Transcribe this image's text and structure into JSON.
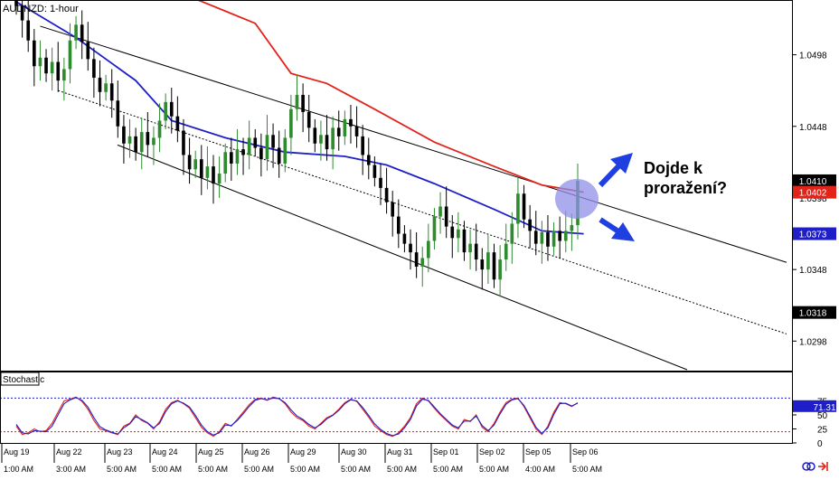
{
  "chart_data": [
    {
      "type": "candlestick",
      "title": "AUDNZD: 1-hour",
      "ylim": [
        1.0278,
        1.0535
      ],
      "y_ticks": [
        {
          "label": "1.0498",
          "value": 1.0498
        },
        {
          "label": "1.0448",
          "value": 1.0448
        },
        {
          "label": "1.0398",
          "value": 1.0398
        },
        {
          "label": "1.0348",
          "value": 1.0348
        },
        {
          "label": "1.0298",
          "value": 1.0298
        }
      ],
      "price_tags": [
        {
          "label": "1.0410",
          "value": 1.041,
          "bg": "#000000",
          "fg": "#ffffff"
        },
        {
          "label": "1.0402",
          "value": 1.0402,
          "bg": "#e2231a",
          "fg": "#ffffff"
        },
        {
          "label": "1.0373",
          "value": 1.0373,
          "bg": "#1f1fc8",
          "fg": "#ffffff"
        },
        {
          "label": "1.0318",
          "value": 1.0318,
          "bg": "#000000",
          "fg": "#ffffff"
        }
      ],
      "x_date_labels": [
        "Aug 19",
        "Aug 22",
        "Aug 23",
        "Aug 24",
        "Aug 25",
        "Aug 26",
        "Aug 29",
        "Aug 30",
        "Aug 31",
        "Sep 01",
        "Sep 02",
        "Sep 05",
        "Sep 06"
      ],
      "x_time_labels": [
        "1:00 AM",
        "3:00 AM",
        "5:00 AM",
        "5:00 AM",
        "5:00 AM",
        "5:00 AM",
        "5:00 AM",
        "5:00 AM",
        "5:00 AM",
        "5:00 AM",
        "5:00 AM",
        "4:00 AM",
        "5:00 AM"
      ],
      "colors": {
        "up": "#2e8b2e",
        "down": "#000000",
        "ma_long": "#e2231a",
        "ma_short": "#1f1fc8"
      },
      "annotation_text": [
        "Dojde k",
        "proražení?"
      ],
      "candle_closes": [
        1.0532,
        1.0522,
        1.0508,
        1.049,
        1.0496,
        1.0485,
        1.0493,
        1.048,
        1.0488,
        1.0508,
        1.0519,
        1.0507,
        1.0495,
        1.0482,
        1.0472,
        1.0478,
        1.0466,
        1.0448,
        1.0436,
        1.0441,
        1.043,
        1.0444,
        1.0435,
        1.044,
        1.0452,
        1.0465,
        1.0455,
        1.0445,
        1.0428,
        1.0418,
        1.0425,
        1.0412,
        1.042,
        1.0408,
        1.0415,
        1.043,
        1.0422,
        1.0432,
        1.0428,
        1.044,
        1.0433,
        1.0425,
        1.0442,
        1.0433,
        1.0422,
        1.044,
        1.046,
        1.047,
        1.0458,
        1.0447,
        1.0436,
        1.0442,
        1.0432,
        1.0447,
        1.0441,
        1.0453,
        1.0448,
        1.0441,
        1.0428,
        1.0421,
        1.0412,
        1.0405,
        1.0395,
        1.0385,
        1.0373,
        1.0366,
        1.036,
        1.035,
        1.0356,
        1.0368,
        1.0385,
        1.0392,
        1.0378,
        1.037,
        1.0376,
        1.036,
        1.0366,
        1.0355,
        1.0348,
        1.036,
        1.0341,
        1.0355,
        1.0366,
        1.038,
        1.0401,
        1.0383,
        1.0375,
        1.0366,
        1.0374,
        1.0364,
        1.0375,
        1.0368,
        1.0375,
        1.0379,
        1.041
      ],
      "ma_long_points": [
        [
          0,
          1.059
        ],
        [
          10,
          1.0572
        ],
        [
          20,
          1.0555
        ],
        [
          30,
          1.0537
        ],
        [
          40,
          1.052
        ],
        [
          46,
          1.0485
        ],
        [
          52,
          1.0478
        ],
        [
          60,
          1.046
        ],
        [
          70,
          1.0437
        ],
        [
          80,
          1.042
        ],
        [
          88,
          1.0407
        ],
        [
          95,
          1.0402
        ]
      ],
      "ma_short_points": [
        [
          0,
          1.0535
        ],
        [
          10,
          1.051
        ],
        [
          20,
          1.048
        ],
        [
          26,
          1.0452
        ],
        [
          35,
          1.044
        ],
        [
          45,
          1.043
        ],
        [
          55,
          1.0427
        ],
        [
          62,
          1.0421
        ],
        [
          70,
          1.0408
        ],
        [
          80,
          1.039
        ],
        [
          88,
          1.0375
        ],
        [
          95,
          1.0373
        ]
      ]
    },
    {
      "type": "line",
      "title": "Stochastic",
      "ylim": [
        0,
        100
      ],
      "y_ticks": [
        {
          "label": "75",
          "value": 75
        },
        {
          "label": "50",
          "value": 50
        },
        {
          "label": "25",
          "value": 25
        },
        {
          "label": "0",
          "value": 0
        }
      ],
      "levels": [
        80,
        20
      ],
      "value_tag": {
        "label": "71.31",
        "value": 71.31,
        "bg": "#1f1fc8",
        "fg": "#ffffff"
      },
      "series": [
        {
          "color": "#e2231a",
          "values": [
            30,
            15,
            18,
            25,
            20,
            22,
            35,
            55,
            75,
            78,
            82,
            74,
            60,
            40,
            25,
            22,
            18,
            15,
            30,
            35,
            50,
            40,
            35,
            25,
            38,
            60,
            72,
            76,
            70,
            62,
            45,
            28,
            18,
            12,
            20,
            35,
            30,
            42,
            55,
            68,
            78,
            80,
            76,
            82,
            79,
            70,
            55,
            45,
            40,
            30,
            25,
            35,
            45,
            50,
            60,
            72,
            78,
            74,
            60,
            46,
            30,
            22,
            15,
            12,
            18,
            30,
            45,
            70,
            80,
            75,
            62,
            50,
            40,
            30,
            25,
            42,
            38,
            50,
            28,
            20,
            35,
            55,
            72,
            78,
            80,
            65,
            45,
            25,
            15,
            30,
            55,
            72,
            70,
            65,
            72
          ]
        },
        {
          "color": "#1f1fc8",
          "values": [
            33,
            18,
            16,
            22,
            21,
            20,
            30,
            50,
            70,
            77,
            81,
            76,
            64,
            45,
            29,
            23,
            19,
            16,
            27,
            34,
            47,
            42,
            36,
            27,
            35,
            56,
            70,
            75,
            71,
            64,
            49,
            32,
            20,
            14,
            18,
            32,
            31,
            40,
            52,
            65,
            76,
            79,
            77,
            80,
            79,
            72,
            59,
            48,
            42,
            33,
            27,
            33,
            43,
            49,
            58,
            70,
            77,
            75,
            63,
            49,
            34,
            24,
            17,
            13,
            16,
            27,
            42,
            66,
            78,
            76,
            64,
            52,
            42,
            32,
            27,
            39,
            39,
            48,
            31,
            22,
            32,
            52,
            69,
            77,
            79,
            67,
            48,
            28,
            17,
            27,
            51,
            70,
            71,
            66,
            71
          ]
        }
      ]
    }
  ]
}
